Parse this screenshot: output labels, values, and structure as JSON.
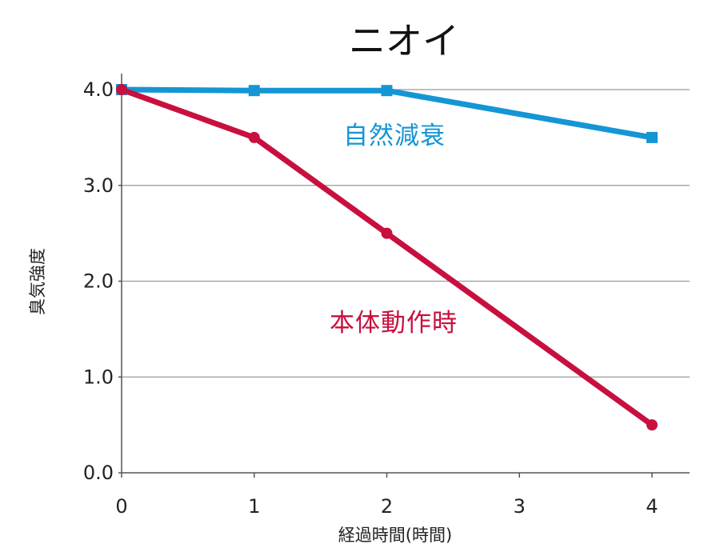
{
  "chart_data": {
    "type": "line",
    "title": "ニオイ",
    "xlabel": "経過時間(時間)",
    "ylabel": "臭気強度",
    "x": [
      0,
      1,
      2,
      3,
      4
    ],
    "x_ticks": [
      "0",
      "1",
      "2",
      "3",
      "4"
    ],
    "y_ticks": [
      "0.0",
      "1.0",
      "2.0",
      "3.0",
      "4.0"
    ],
    "xlim": [
      0,
      4
    ],
    "ylim": [
      0,
      4
    ],
    "grid": true,
    "legend": "inline labels",
    "series": [
      {
        "name": "自然減衰",
        "x": [
          0,
          1,
          2,
          4
        ],
        "values": [
          4.0,
          3.99,
          3.99,
          3.5
        ],
        "color": "#1496D4",
        "marker": "square"
      },
      {
        "name": "本体動作時",
        "x": [
          0,
          1,
          2,
          4
        ],
        "values": [
          4.0,
          3.5,
          2.5,
          0.5
        ],
        "color": "#C8103E",
        "marker": "circle"
      }
    ]
  }
}
